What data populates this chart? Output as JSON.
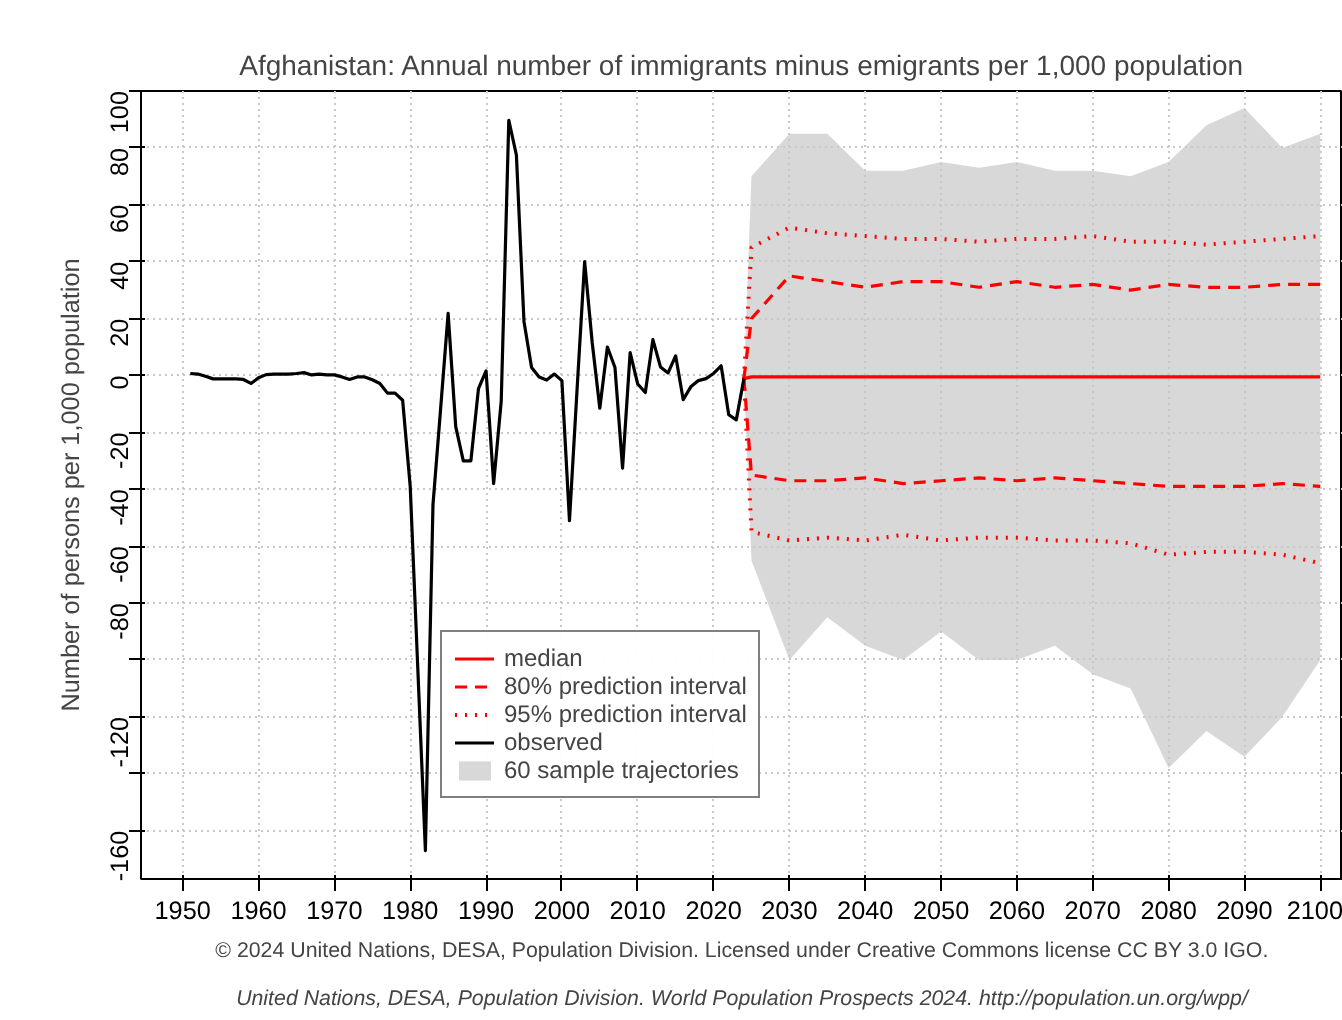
{
  "chart_data": {
    "type": "line",
    "title": "Afghanistan: Annual number of immigrants minus emigrants per 1,000 population",
    "ylabel": "Number of persons per 1,000 population",
    "annotations": [
      "© 2024 United Nations, DESA, Population Division. Licensed under Creative Commons license CC BY 3.0 IGO.",
      "United Nations, DESA, Population Division. World Population Prospects 2024. http://population.un.org/wpp/"
    ],
    "xlim": [
      1944.5,
      2103
    ],
    "ylim": [
      -177,
      100
    ],
    "xticks": [
      1950,
      1960,
      1970,
      1980,
      1990,
      2000,
      2010,
      2020,
      2030,
      2040,
      2050,
      2060,
      2070,
      2080,
      2090,
      2100
    ],
    "yticks": [
      -160,
      {
        "value": -140,
        "label": null
      },
      -120,
      {
        "value": -100,
        "label": null
      },
      -80,
      -60,
      -40,
      -20,
      0,
      20,
      40,
      60,
      80,
      100
    ],
    "grid": true,
    "legend": "bottom",
    "marker": "none",
    "series": [
      {
        "name": "median",
        "color": "#ff0000",
        "line_style": "solid",
        "x": [
          2024,
          2025,
          2030,
          2035,
          2040,
          2045,
          2050,
          2055,
          2060,
          2065,
          2070,
          2075,
          2080,
          2085,
          2090,
          2095,
          2100
        ],
        "values": [
          -1.1,
          -0.5,
          -0.5,
          -0.5,
          -0.5,
          -0.5,
          -0.5,
          -0.5,
          -0.5,
          -0.5,
          -0.5,
          -0.5,
          -0.5,
          -0.5,
          -0.5,
          -0.5,
          -0.5
        ]
      },
      {
        "name": "80% prediction interval",
        "color": "#ff0000",
        "line_style": "dashed",
        "x": [
          2024,
          2025,
          2030,
          2035,
          2040,
          2045,
          2050,
          2055,
          2060,
          2065,
          2070,
          2075,
          2080,
          2085,
          2090,
          2095,
          2100,
          null,
          2024,
          2025,
          2030,
          2035,
          2040,
          2045,
          2050,
          2055,
          2060,
          2065,
          2070,
          2075,
          2080,
          2085,
          2090,
          2095,
          2100
        ],
        "values": [
          -1.1,
          20,
          35,
          33,
          31,
          33,
          33,
          31,
          33,
          31,
          32,
          30,
          32,
          31,
          31,
          32,
          32,
          null,
          -1.1,
          -35,
          -37,
          -37,
          -36,
          -38,
          -37,
          -36,
          -37,
          -36,
          -37,
          -38,
          -39,
          -39,
          -39,
          -38,
          -39
        ]
      },
      {
        "name": "95% prediction interval",
        "color": "#ff0000",
        "line_style": "dotted",
        "x": [
          2024,
          2025,
          2030,
          2035,
          2040,
          2045,
          2050,
          2055,
          2060,
          2065,
          2070,
          2075,
          2080,
          2085,
          2090,
          2095,
          2100,
          null,
          2024,
          2025,
          2030,
          2035,
          2040,
          2045,
          2050,
          2055,
          2060,
          2065,
          2070,
          2075,
          2080,
          2085,
          2090,
          2095,
          2100
        ],
        "values": [
          -1.1,
          45,
          52,
          50,
          49,
          48,
          48,
          47,
          48,
          48,
          49,
          47,
          47,
          46,
          47,
          48,
          49,
          null,
          -1.1,
          -55,
          -58,
          -57,
          -58,
          -56,
          -58,
          -57,
          -57,
          -58,
          -58,
          -59,
          -63,
          -62,
          -62,
          -63,
          -66
        ]
      },
      {
        "name": "observed",
        "color": "#000000",
        "line_style": "solid",
        "x": [
          1951,
          1952,
          1953,
          1954,
          1955,
          1956,
          1957,
          1958,
          1959,
          1960,
          1961,
          1962,
          1963,
          1964,
          1965,
          1966,
          1967,
          1968,
          1969,
          1970,
          1971,
          1972,
          1973,
          1974,
          1975,
          1976,
          1977,
          1978,
          1979,
          1980,
          1981,
          1982,
          1983,
          1984,
          1985,
          1986,
          1987,
          1988,
          1989,
          1990,
          1991,
          1992,
          1993,
          1994,
          1995,
          1996,
          1997,
          1998,
          1999,
          2000,
          2001,
          2002,
          2003,
          2004,
          2005,
          2006,
          2007,
          2008,
          2009,
          2010,
          2011,
          2012,
          2013,
          2014,
          2015,
          2016,
          2017,
          2018,
          2019,
          2020,
          2021,
          2022,
          2023,
          2024
        ],
        "values": [
          0.7,
          0.5,
          -0.3,
          -1.2,
          -1.2,
          -1.2,
          -1.2,
          -1.4,
          -2.8,
          -0.8,
          0.3,
          0.5,
          0.5,
          0.5,
          0.7,
          1,
          0.2,
          0.5,
          0.2,
          0.2,
          -0.5,
          -1.4,
          -0.5,
          -0.5,
          -1.5,
          -2.8,
          -6.2,
          -6.2,
          -8.7,
          -39,
          -103,
          -167,
          -45.5,
          -12,
          21.8,
          -18,
          -30,
          -30,
          -4.6,
          1.6,
          -38,
          -9,
          89.7,
          77.5,
          19,
          2.8,
          -0.5,
          -1.6,
          0.5,
          -1.8,
          -51,
          -5,
          40,
          11.5,
          -11.5,
          10,
          2.8,
          -32.6,
          8,
          -3,
          -6,
          12.6,
          3,
          0.9,
          6.9,
          -8.5,
          -4,
          -1.8,
          -1.1,
          0.7,
          3.4,
          -13.8,
          -15.6,
          -1.1
        ]
      },
      {
        "name": "60 sample trajectories",
        "color": "#bebebe",
        "x": [
          2024,
          2025,
          2030,
          2035,
          2040,
          2045,
          2050,
          2055,
          2060,
          2065,
          2070,
          2075,
          2080,
          2085,
          2090,
          2095,
          2100
        ],
        "values": [
          null,
          null,
          null,
          null,
          null,
          null,
          null,
          null,
          null,
          null,
          null,
          null,
          null,
          null,
          null,
          null,
          null
        ],
        "upper": [
          -1.1,
          70,
          85,
          85,
          72,
          72,
          75,
          73,
          75,
          72,
          72,
          70,
          75,
          88,
          94,
          80,
          85
        ],
        "lower": [
          -1.1,
          -65,
          -100,
          -85,
          -95,
          -100,
          -90,
          -100,
          -100,
          -95,
          -105,
          -110,
          -138,
          -125,
          -134,
          -120,
          -100
        ]
      }
    ]
  }
}
